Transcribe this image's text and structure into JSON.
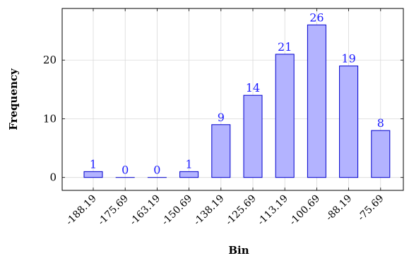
{
  "chart_data": {
    "type": "bar",
    "title": "",
    "xlabel": "Bin",
    "ylabel": "Frequency",
    "categories": [
      "-188.19",
      "-175.69",
      "-163.19",
      "-150.69",
      "-138.19",
      "-125.69",
      "-113.19",
      "-100.69",
      "-88.19",
      "-75.69"
    ],
    "values": [
      1,
      0,
      0,
      1,
      9,
      14,
      21,
      26,
      19,
      8
    ],
    "data_labels": [
      "1",
      "0",
      "0",
      "1",
      "9",
      "14",
      "21",
      "26",
      "19",
      "8"
    ],
    "yticks": [
      0,
      10,
      20
    ],
    "ytick_labels": [
      "0",
      "10",
      "20"
    ],
    "ylim": [
      -2.2,
      28.8
    ],
    "grid": true,
    "legend": "none",
    "colors": {
      "bar_fill": "#b3b3ff",
      "bar_stroke": "#0000cc",
      "data_label": "#1a1aff",
      "grid": "#d9d9d9",
      "axis": "#000000"
    }
  }
}
